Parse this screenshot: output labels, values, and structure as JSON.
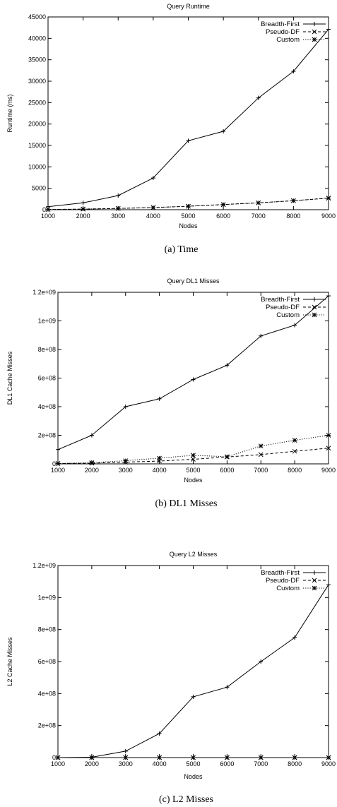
{
  "chart_data": [
    {
      "type": "line",
      "title": "Query Runtime",
      "xlabel": "Nodes",
      "ylabel": "Runtime (ms)",
      "caption": "(a)  Time",
      "x": [
        1000,
        2000,
        3000,
        4000,
        5000,
        6000,
        7000,
        8000,
        9000
      ],
      "xlim": [
        1000,
        9000
      ],
      "ylim": [
        0,
        45000
      ],
      "xticks": [
        1000,
        2000,
        3000,
        4000,
        5000,
        6000,
        7000,
        8000,
        9000
      ],
      "yticks": [
        0,
        5000,
        10000,
        15000,
        20000,
        25000,
        30000,
        35000,
        40000,
        45000
      ],
      "xtick_labels": [
        "1000",
        "2000",
        "3000",
        "4000",
        "5000",
        "6000",
        "7000",
        "8000",
        "9000"
      ],
      "ytick_labels": [
        "0",
        "5000",
        "10000",
        "15000",
        "20000",
        "25000",
        "30000",
        "35000",
        "40000",
        "45000"
      ],
      "legend_position": "top-right",
      "grid": false,
      "series": [
        {
          "name": "Breadth-First",
          "marker": "plus",
          "dash": "solid",
          "values": [
            700,
            1600,
            3300,
            7400,
            16100,
            18300,
            26100,
            32300,
            42100
          ]
        },
        {
          "name": "Pseudo-DF",
          "marker": "cross",
          "dash": "dashed",
          "values": [
            50,
            150,
            300,
            500,
            800,
            1200,
            1600,
            2100,
            2700
          ]
        },
        {
          "name": "Custom",
          "marker": "star",
          "dash": "dotted",
          "values": [
            50,
            150,
            300,
            500,
            800,
            1200,
            1600,
            2100,
            2700
          ]
        }
      ]
    },
    {
      "type": "line",
      "title": "Query DL1 Misses",
      "xlabel": "Nodes",
      "ylabel": "DL1 Cache Misses",
      "caption": "(b)  DL1 Misses",
      "x": [
        1000,
        2000,
        3000,
        4000,
        5000,
        6000,
        7000,
        8000,
        9000
      ],
      "xlim": [
        1000,
        9000
      ],
      "ylim": [
        0,
        1200000000
      ],
      "xticks": [
        1000,
        2000,
        3000,
        4000,
        5000,
        6000,
        7000,
        8000,
        9000
      ],
      "yticks": [
        0,
        200000000,
        400000000,
        600000000,
        800000000,
        1000000000,
        1200000000
      ],
      "xtick_labels": [
        "1000",
        "2000",
        "3000",
        "4000",
        "5000",
        "6000",
        "7000",
        "8000",
        "9000"
      ],
      "ytick_labels": [
        "0",
        "2e+08",
        "4e+08",
        "6e+08",
        "8e+08",
        "1e+09",
        "1.2e+09"
      ],
      "legend_position": "top-right",
      "grid": false,
      "series": [
        {
          "name": "Breadth-First",
          "marker": "plus",
          "dash": "solid",
          "values": [
            100000000,
            200000000,
            400000000,
            455000000,
            590000000,
            690000000,
            895000000,
            970000000,
            1175000000
          ]
        },
        {
          "name": "Pseudo-DF",
          "marker": "cross",
          "dash": "dashed",
          "values": [
            2000000,
            5000000,
            12000000,
            20000000,
            32000000,
            48000000,
            65000000,
            88000000,
            110000000
          ]
        },
        {
          "name": "Custom",
          "marker": "star",
          "dash": "dotted",
          "values": [
            3000000,
            8000000,
            22000000,
            40000000,
            60000000,
            50000000,
            125000000,
            165000000,
            200000000
          ]
        }
      ]
    },
    {
      "type": "line",
      "title": "Query L2 Misses",
      "xlabel": "Nodes",
      "ylabel": "L2 Cache Misses",
      "caption": "(c)  L2 Misses",
      "x": [
        1000,
        2000,
        3000,
        4000,
        5000,
        6000,
        7000,
        8000,
        9000
      ],
      "xlim": [
        1000,
        9000
      ],
      "ylim": [
        0,
        1200000000
      ],
      "xticks": [
        1000,
        2000,
        3000,
        4000,
        5000,
        6000,
        7000,
        8000,
        9000
      ],
      "yticks": [
        0,
        200000000,
        400000000,
        600000000,
        800000000,
        1000000000,
        1200000000
      ],
      "xtick_labels": [
        "1000",
        "2000",
        "3000",
        "4000",
        "5000",
        "6000",
        "7000",
        "8000",
        "9000"
      ],
      "ytick_labels": [
        "0",
        "2e+08",
        "4e+08",
        "6e+08",
        "8e+08",
        "1e+09",
        "1.2e+09"
      ],
      "legend_position": "top-right",
      "grid": false,
      "series": [
        {
          "name": "Breadth-First",
          "marker": "plus",
          "dash": "solid",
          "values": [
            0,
            2000000,
            40000000,
            150000000,
            380000000,
            440000000,
            600000000,
            750000000,
            1080000000
          ]
        },
        {
          "name": "Pseudo-DF",
          "marker": "cross",
          "dash": "dashed",
          "values": [
            0,
            0,
            0,
            0,
            0,
            0,
            0,
            0,
            0
          ]
        },
        {
          "name": "Custom",
          "marker": "star",
          "dash": "dotted",
          "values": [
            0,
            0,
            0,
            0,
            0,
            0,
            0,
            0,
            0
          ]
        }
      ]
    }
  ],
  "colors": {
    "ink": "#000000",
    "background": "#ffffff"
  }
}
